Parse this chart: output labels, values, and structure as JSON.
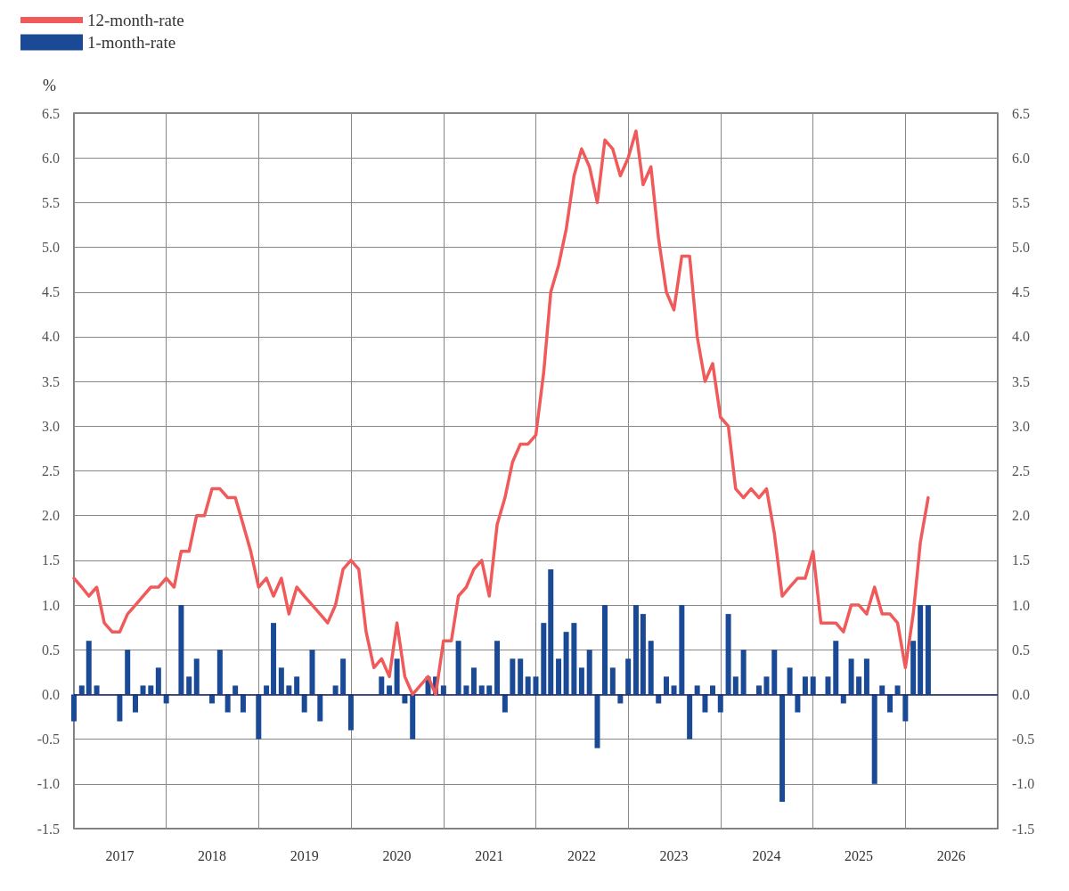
{
  "chart_data": {
    "type": "bar",
    "ylabel": "%",
    "legend": "top left",
    "grid": true,
    "marker": "none",
    "line_style": "solid",
    "x": [
      "2017-01",
      "2017-02",
      "2017-03",
      "2017-04",
      "2017-05",
      "2017-06",
      "2017-07",
      "2017-08",
      "2017-09",
      "2017-10",
      "2017-11",
      "2017-12",
      "2018-01",
      "2018-02",
      "2018-03",
      "2018-04",
      "2018-05",
      "2018-06",
      "2018-07",
      "2018-08",
      "2018-09",
      "2018-10",
      "2018-11",
      "2018-12",
      "2019-01",
      "2019-02",
      "2019-03",
      "2019-04",
      "2019-05",
      "2019-06",
      "2019-07",
      "2019-08",
      "2019-09",
      "2019-10",
      "2019-11",
      "2019-12",
      "2020-01",
      "2020-02",
      "2020-03",
      "2020-04",
      "2020-05",
      "2020-06",
      "2020-07",
      "2020-08",
      "2020-09",
      "2020-10",
      "2020-11",
      "2020-12",
      "2021-01",
      "2021-02",
      "2021-03",
      "2021-04",
      "2021-05",
      "2021-06",
      "2021-07",
      "2021-08",
      "2021-09",
      "2021-10",
      "2021-11",
      "2021-12",
      "2022-01",
      "2022-02",
      "2022-03",
      "2022-04",
      "2022-05",
      "2022-06",
      "2022-07",
      "2022-08",
      "2022-09",
      "2022-10",
      "2022-11",
      "2022-12",
      "2023-01",
      "2023-02",
      "2023-03",
      "2023-04",
      "2023-05",
      "2023-06",
      "2023-07",
      "2023-08",
      "2023-09",
      "2023-10",
      "2023-11",
      "2023-12",
      "2024-01",
      "2024-02",
      "2024-03",
      "2024-04",
      "2024-05",
      "2024-06",
      "2024-07",
      "2024-08",
      "2024-09",
      "2024-10",
      "2024-11",
      "2024-12",
      "2025-01",
      "2025-02",
      "2025-03",
      "2025-04",
      "2025-05",
      "2025-06",
      "2025-07",
      "2025-08",
      "2025-09",
      "2025-10",
      "2025-11",
      "2025-12",
      "2026-01",
      "2026-02",
      "2026-03",
      "2026-04"
    ],
    "series": [
      {
        "name": "12-month-rate",
        "type": "line",
        "color": "#f05a5a",
        "values": [
          1.3,
          1.2,
          1.1,
          1.2,
          0.8,
          0.7,
          0.7,
          0.9,
          1.0,
          1.1,
          1.2,
          1.2,
          1.3,
          1.2,
          1.6,
          1.6,
          2.0,
          2.0,
          2.3,
          2.3,
          2.2,
          2.2,
          1.9,
          1.6,
          1.2,
          1.3,
          1.1,
          1.3,
          0.9,
          1.2,
          1.1,
          1.0,
          0.9,
          0.8,
          1.0,
          1.4,
          1.5,
          1.4,
          0.7,
          0.3,
          0.4,
          0.2,
          0.8,
          0.2,
          0.0,
          0.1,
          0.2,
          0.0,
          0.6,
          0.6,
          1.1,
          1.2,
          1.4,
          1.5,
          1.1,
          1.9,
          2.2,
          2.6,
          2.8,
          2.8,
          2.9,
          3.6,
          4.5,
          4.8,
          5.2,
          5.8,
          6.1,
          5.9,
          5.5,
          6.2,
          6.1,
          5.8,
          6.0,
          6.3,
          5.7,
          5.9,
          5.1,
          4.5,
          4.3,
          4.9,
          4.9,
          4.0,
          3.5,
          3.7,
          3.1,
          3.0,
          2.3,
          2.2,
          2.3,
          2.2,
          2.3,
          1.8,
          1.1,
          1.2,
          1.3,
          1.3,
          1.6,
          0.8,
          0.8,
          0.8,
          0.7,
          1.0,
          1.0,
          0.9,
          1.2,
          0.9,
          0.9,
          0.8,
          0.3,
          0.9,
          1.7,
          2.2
        ]
      },
      {
        "name": "1-month-rate",
        "color": "#1a4a96",
        "values": [
          -0.3,
          0.1,
          0.6,
          0.1,
          0,
          0,
          -0.3,
          0.5,
          -0.2,
          0.1,
          0.1,
          0.3,
          -0.1,
          0,
          1.0,
          0.2,
          0.4,
          0,
          -0.1,
          0.5,
          -0.2,
          0.1,
          -0.2,
          0,
          -0.5,
          0.1,
          0.8,
          0.3,
          0.1,
          0.2,
          -0.2,
          0.5,
          -0.3,
          0,
          0.1,
          0.4,
          -0.4,
          0,
          0,
          0,
          0.2,
          0.1,
          0.4,
          -0.1,
          -0.5,
          0,
          0.2,
          0.2,
          0.1,
          0,
          0.6,
          0.1,
          0.3,
          0.1,
          0.1,
          0.6,
          -0.2,
          0.4,
          0.4,
          0.2,
          0.2,
          0.8,
          1.4,
          0.4,
          0.7,
          0.8,
          0.3,
          0.5,
          -0.6,
          1.0,
          0.3,
          -0.1,
          0.4,
          1.0,
          0.9,
          0.6,
          -0.1,
          0.2,
          0.1,
          1.0,
          -0.5,
          0.1,
          -0.2,
          0.1,
          -0.2,
          0.9,
          0.2,
          0.5,
          0,
          0.1,
          0.2,
          0.5,
          -1.2,
          0.3,
          -0.2,
          0.2,
          0.2,
          0,
          0.2,
          0.6,
          -0.1,
          0.4,
          0.2,
          0.4,
          -1.0,
          0.1,
          -0.2,
          0.1,
          -0.3,
          0.6,
          1.0,
          1.0
        ]
      }
    ],
    "xlim": [
      "2017-01",
      "2027-01"
    ],
    "xticks": [
      {
        "value": "2017-01",
        "label": null
      },
      {
        "value": "2017-07",
        "label": "2017"
      },
      {
        "value": "2018-01",
        "label": null
      },
      {
        "value": "2018-07",
        "label": "2018"
      },
      {
        "value": "2019-01",
        "label": null
      },
      {
        "value": "2019-07",
        "label": "2019"
      },
      {
        "value": "2020-01",
        "label": null
      },
      {
        "value": "2020-07",
        "label": "2020"
      },
      {
        "value": "2021-01",
        "label": null
      },
      {
        "value": "2021-07",
        "label": "2021"
      },
      {
        "value": "2022-01",
        "label": null
      },
      {
        "value": "2022-07",
        "label": "2022"
      },
      {
        "value": "2023-01",
        "label": null
      },
      {
        "value": "2023-07",
        "label": "2023"
      },
      {
        "value": "2024-01",
        "label": null
      },
      {
        "value": "2024-07",
        "label": "2024"
      },
      {
        "value": "2025-01",
        "label": null
      },
      {
        "value": "2025-07",
        "label": "2025"
      },
      {
        "value": "2026-01",
        "label": null
      },
      {
        "value": "2026-07",
        "label": "2026"
      },
      {
        "value": "2027-01",
        "label": null
      }
    ],
    "ylim": [
      -1.5,
      6.5
    ],
    "yticks": [
      -1.5,
      {
        "value": -1,
        "label": "-1.0"
      },
      -0.5,
      {
        "value": 0,
        "label": "0.0"
      },
      0.5,
      {
        "value": 1,
        "label": "1.0"
      },
      1.5,
      {
        "value": 2,
        "label": "2.0"
      },
      2.5,
      {
        "value": 3,
        "label": "3.0"
      },
      3.5,
      {
        "value": 4,
        "label": "4.0"
      },
      4.5,
      {
        "value": 5,
        "label": "5.0"
      },
      5.5,
      {
        "value": 6,
        "label": "6.0"
      },
      6.5
    ],
    "ref_lines": [
      {
        "axis": "y",
        "value": 0,
        "color": "#1a2a6c"
      }
    ],
    "y2lim": [
      -1.5,
      6.5
    ],
    "y2ticks": [
      -1.5,
      {
        "value": -1,
        "label": "-1.0"
      },
      -0.5,
      {
        "value": 0,
        "label": "0.0"
      },
      0.5,
      {
        "value": 1,
        "label": "1.0"
      },
      1.5,
      {
        "value": 2,
        "label": "2.0"
      },
      2.5,
      {
        "value": 3,
        "label": "3.0"
      },
      3.5,
      {
        "value": 4,
        "label": "4.0"
      },
      4.5,
      {
        "value": 5,
        "label": "5.0"
      },
      5.5,
      {
        "value": 6,
        "label": "6.0"
      },
      6.5
    ]
  }
}
